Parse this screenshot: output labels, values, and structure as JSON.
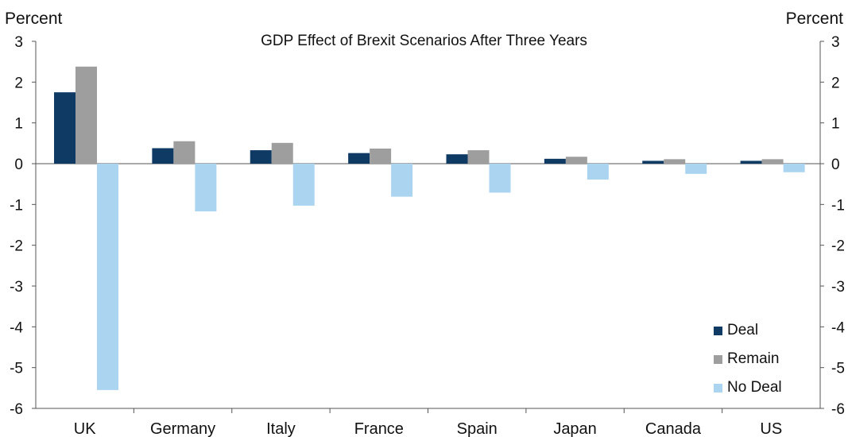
{
  "chart_data": {
    "type": "bar",
    "title": "GDP Effect of Brexit Scenarios After Three Years",
    "ylabel_left": "Percent",
    "ylabel_right": "Percent",
    "xlabel": "",
    "ylim": [
      -6,
      3
    ],
    "yticks": [
      3,
      2,
      1,
      0,
      -1,
      -2,
      -3,
      -4,
      -5,
      -6
    ],
    "categories": [
      "UK",
      "Germany",
      "Italy",
      "France",
      "Spain",
      "Japan",
      "Canada",
      "US"
    ],
    "series": [
      {
        "name": "Deal",
        "color": "#0e3a63",
        "values": [
          1.75,
          0.38,
          0.33,
          0.26,
          0.23,
          0.12,
          0.07,
          0.07
        ]
      },
      {
        "name": "Remain",
        "color": "#9e9e9e",
        "values": [
          2.38,
          0.55,
          0.51,
          0.37,
          0.33,
          0.17,
          0.11,
          0.11
        ]
      },
      {
        "name": "No Deal",
        "color": "#abd4f0",
        "values": [
          -5.55,
          -1.17,
          -1.03,
          -0.81,
          -0.71,
          -0.39,
          -0.25,
          -0.21
        ]
      }
    ],
    "grid": false,
    "legend_position": "bottom-right"
  }
}
